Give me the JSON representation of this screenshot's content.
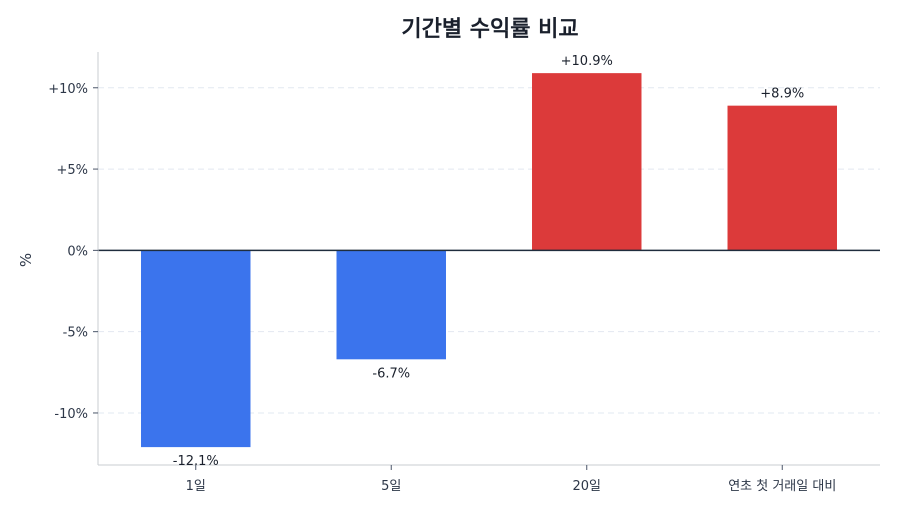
{
  "chart_data": {
    "type": "bar",
    "title": "기간별 수익률 비교",
    "xlabel": "",
    "ylabel": "%",
    "categories": [
      "1일",
      "5일",
      "20일",
      "연초 첫 거래일 대비"
    ],
    "values": [
      -12.1,
      -6.7,
      10.9,
      8.9
    ],
    "data_labels": [
      "-12.1%",
      "-6.7%",
      "+10.9%",
      "+8.9%"
    ],
    "ylim": [
      -13.2,
      12.2
    ],
    "yticks": [
      10,
      5,
      0,
      -5,
      -10
    ],
    "ytick_labels": [
      "+10%",
      "+5%",
      "0%",
      "-5%",
      "-10%"
    ],
    "grid": true,
    "colors": {
      "positive": "#dc3a3a",
      "negative": "#3b74ed",
      "zero_line": "#1f2d3d"
    }
  }
}
